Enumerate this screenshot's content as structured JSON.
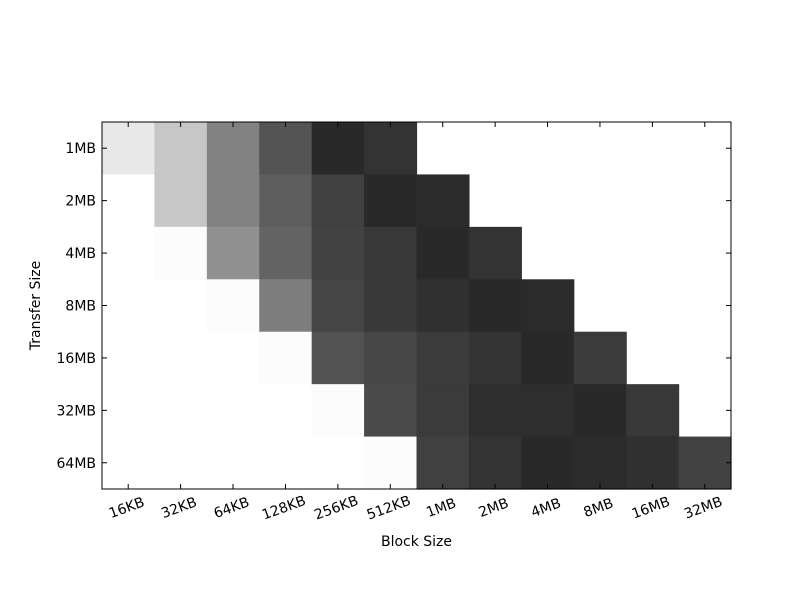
{
  "chart_data": {
    "type": "heatmap",
    "title": "",
    "xlabel": "Block Size",
    "ylabel": "Transfer Size",
    "x_categories": [
      "16KB",
      "32KB",
      "64KB",
      "128KB",
      "256KB",
      "512KB",
      "1MB",
      "2MB",
      "4MB",
      "8MB",
      "16MB",
      "32MB"
    ],
    "y_categories": [
      "1MB",
      "2MB",
      "4MB",
      "8MB",
      "16MB",
      "32MB",
      "64MB"
    ],
    "colormap": "gray_r",
    "value_range": [
      0,
      1
    ],
    "values": [
      [
        0.09,
        0.22,
        0.49,
        0.67,
        0.84,
        0.8,
        null,
        null,
        null,
        null,
        null,
        null
      ],
      [
        0.0,
        0.22,
        0.49,
        0.63,
        0.75,
        0.84,
        0.83,
        null,
        null,
        null,
        null,
        null
      ],
      [
        null,
        0.01,
        0.43,
        0.61,
        0.74,
        0.78,
        0.84,
        0.8,
        null,
        null,
        null,
        null
      ],
      [
        null,
        null,
        0.01,
        0.51,
        0.73,
        0.78,
        0.81,
        0.84,
        0.83,
        null,
        null,
        null
      ],
      [
        null,
        null,
        null,
        0.01,
        0.68,
        0.72,
        0.77,
        0.8,
        0.84,
        0.77,
        null,
        null
      ],
      [
        null,
        null,
        null,
        null,
        0.01,
        0.71,
        0.77,
        0.82,
        0.82,
        0.84,
        0.78,
        null
      ],
      [
        null,
        null,
        null,
        null,
        null,
        0.01,
        0.75,
        0.8,
        0.84,
        0.83,
        0.81,
        0.74
      ]
    ],
    "grid": false,
    "tick_label_rotation_x": 20
  }
}
